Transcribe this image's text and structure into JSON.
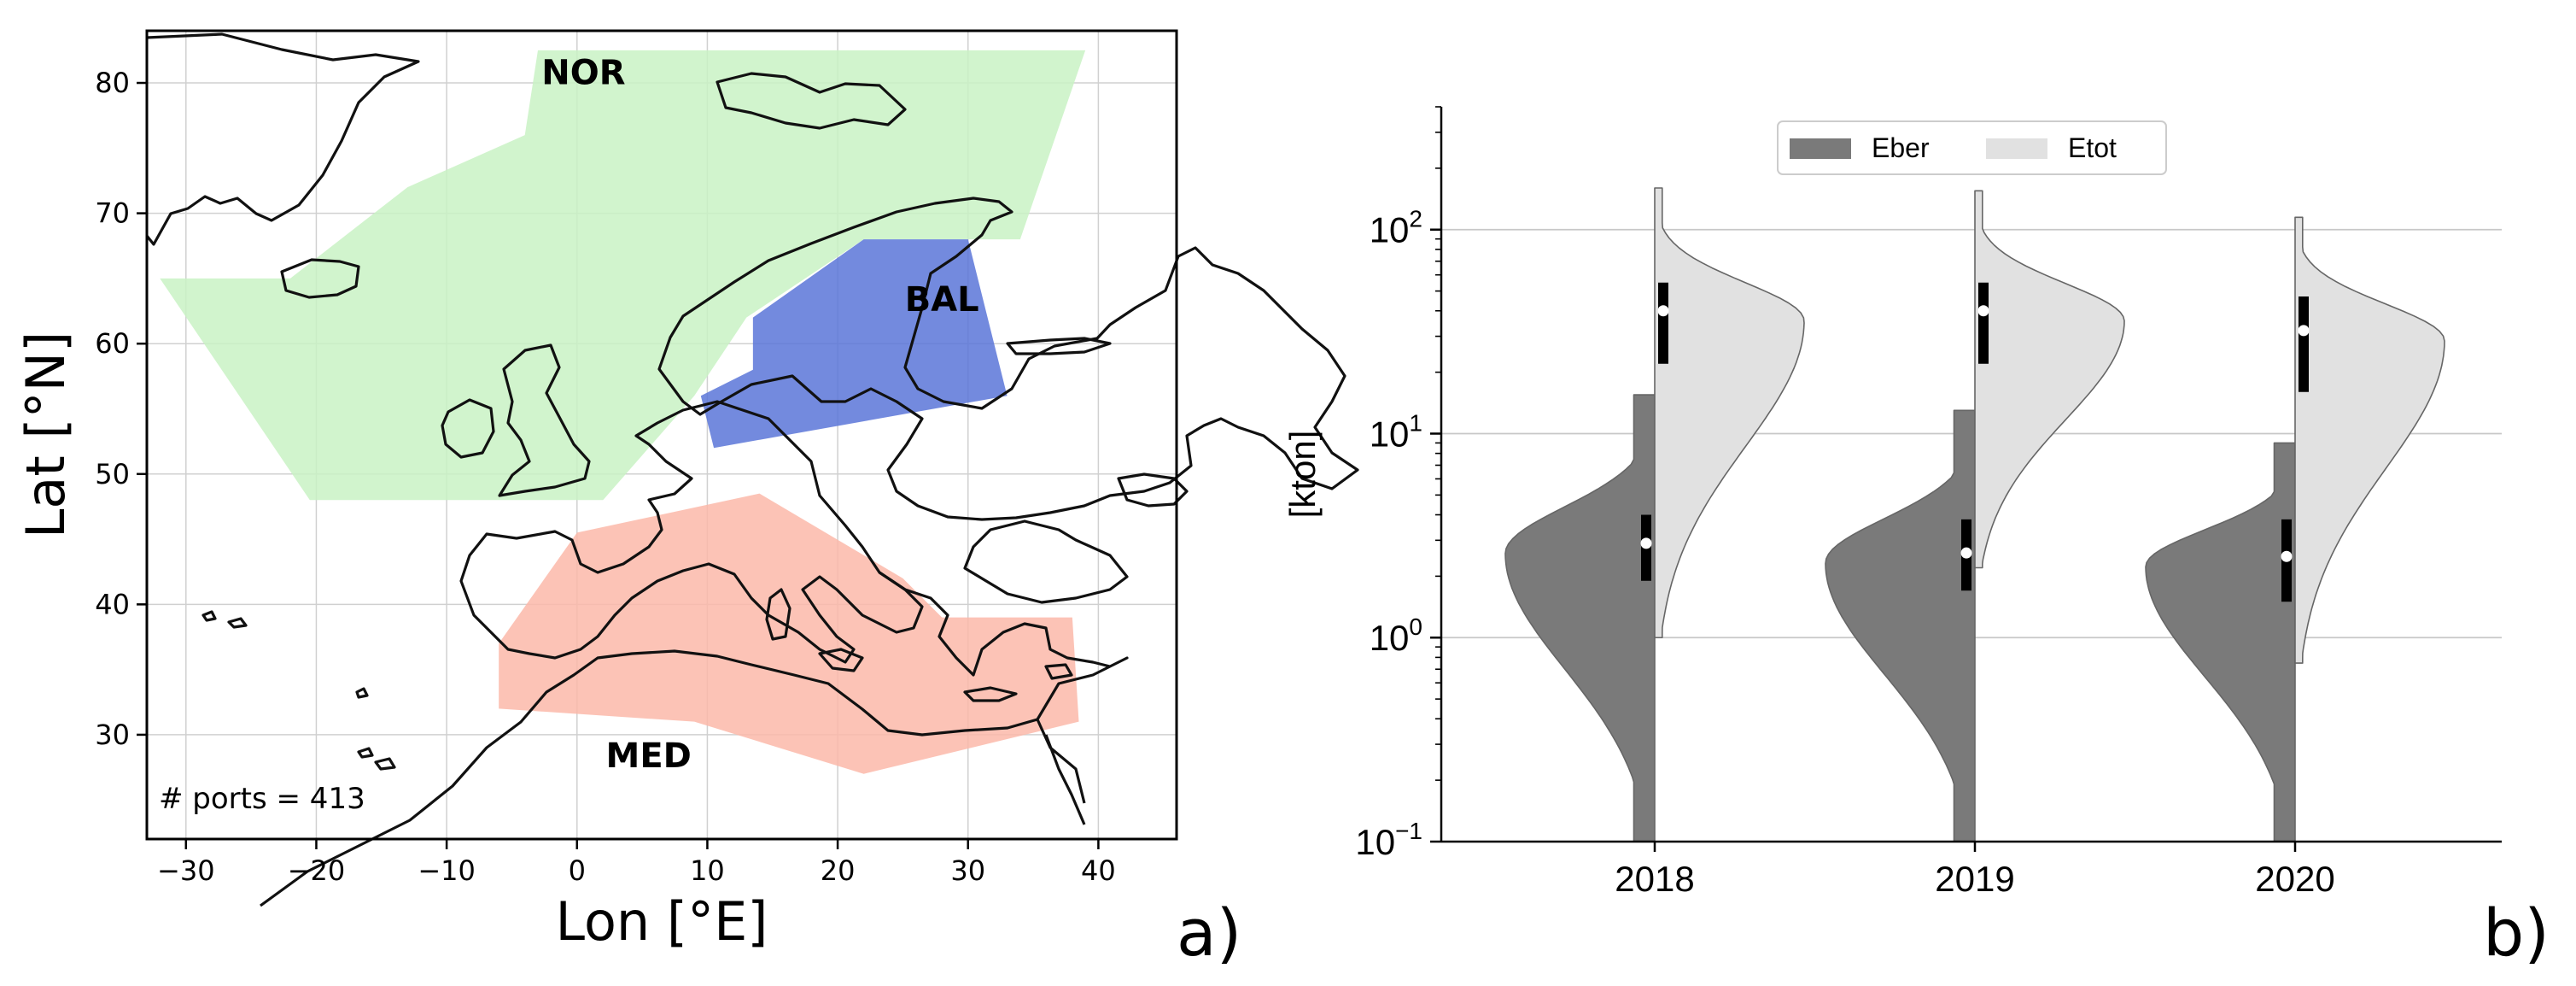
{
  "chart_data": [
    {
      "panel_label": "a)",
      "type": "map",
      "xlabel": "Lon [°E]",
      "ylabel": "Lat [°N]",
      "xlim": [
        -33,
        46
      ],
      "ylim": [
        22,
        84
      ],
      "xticks": [
        -30,
        -20,
        -10,
        0,
        10,
        20,
        30,
        40
      ],
      "yticks": [
        30,
        40,
        50,
        60,
        70,
        80
      ],
      "grid": true,
      "annotation": "# ports = 413",
      "regions": [
        {
          "name": "NOR",
          "color": "#c9f2c4",
          "label_at": [
            0.5,
            79.9
          ],
          "vertices": [
            [
              -22,
              65
            ],
            [
              -13,
              72
            ],
            [
              -4,
              76
            ],
            [
              -3,
              82.5
            ],
            [
              39,
              82.5
            ],
            [
              34,
              68
            ],
            [
              22,
              68
            ],
            [
              13,
              62
            ],
            [
              9,
              56
            ],
            [
              2,
              48
            ],
            [
              -20.5,
              48
            ],
            [
              -32,
              65
            ]
          ]
        },
        {
          "name": "BAL",
          "color": "#5b76d8",
          "label_at": [
            28,
            62.5
          ],
          "vertices": [
            [
              13.5,
              62
            ],
            [
              22,
              68
            ],
            [
              30,
              68
            ],
            [
              33,
              56
            ],
            [
              10.5,
              52
            ],
            [
              9.5,
              56
            ],
            [
              13.5,
              58
            ]
          ]
        },
        {
          "name": "MED",
          "color": "#fcb9a9",
          "label_at": [
            5.5,
            27.5
          ],
          "vertices": [
            [
              -6,
              32
            ],
            [
              -6,
              37
            ],
            [
              0,
              45.5
            ],
            [
              14,
              48.5
            ],
            [
              25,
              42
            ],
            [
              28,
              39
            ],
            [
              38,
              39
            ],
            [
              38.5,
              31
            ],
            [
              22,
              27
            ],
            [
              9,
              31
            ]
          ]
        }
      ]
    },
    {
      "panel_label": "b)",
      "type": "violin",
      "ylabel": "[kton]",
      "yscale": "log",
      "ylim": [
        0.1,
        400
      ],
      "yticks": [
        {
          "value": 0.1,
          "base": "10",
          "exp": "−1"
        },
        {
          "value": 1,
          "base": "10",
          "exp": "0"
        },
        {
          "value": 10,
          "base": "10",
          "exp": "1"
        },
        {
          "value": 100,
          "base": "10",
          "exp": "2"
        }
      ],
      "categories": [
        "2018",
        "2019",
        "2020"
      ],
      "legend": [
        "Eber",
        "Etot"
      ],
      "legend_placement": "top-center",
      "colors": {
        "Eber": "#7a7a7a",
        "Etot": "#e1e1e1"
      },
      "series": [
        {
          "name": "Eber",
          "side": "left",
          "values": [
            {
              "median": 2.9,
              "q1": 1.9,
              "q3": 4.0,
              "min": 0.1,
              "max": 15.5
            },
            {
              "median": 2.6,
              "q1": 1.7,
              "q3": 3.8,
              "min": 0.1,
              "max": 13.0
            },
            {
              "median": 2.5,
              "q1": 1.5,
              "q3": 3.8,
              "min": 0.1,
              "max": 9.0
            }
          ]
        },
        {
          "name": "Etot",
          "side": "right",
          "values": [
            {
              "median": 40,
              "q1": 22,
              "q3": 55,
              "min": 1.0,
              "max": 160
            },
            {
              "median": 40,
              "q1": 22,
              "q3": 55,
              "min": 2.2,
              "max": 155
            },
            {
              "median": 32,
              "q1": 16,
              "q3": 47,
              "min": 0.75,
              "max": 115
            }
          ]
        }
      ]
    }
  ]
}
